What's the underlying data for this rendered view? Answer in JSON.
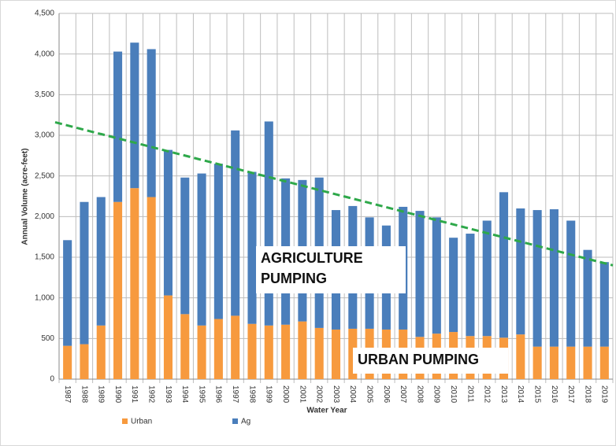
{
  "chart_data": {
    "type": "stacked_bar",
    "x_label": "Water Year",
    "y_label": "Annual Volume (acre-feet)",
    "categories": [
      "1987",
      "1988",
      "1989",
      "1990",
      "1991",
      "1992",
      "1993",
      "1994",
      "1995",
      "1996",
      "1997",
      "1998",
      "1999",
      "2000",
      "2001",
      "2002",
      "2003",
      "2004",
      "2005",
      "2006",
      "2007",
      "2008",
      "2009",
      "2010",
      "2011",
      "2012",
      "2013",
      "2014",
      "2015",
      "2016",
      "2017",
      "2018",
      "2019"
    ],
    "series": [
      {
        "name": "Urban",
        "color": "#f79a3e",
        "values": [
          410,
          430,
          660,
          2180,
          2350,
          2240,
          1030,
          800,
          660,
          740,
          780,
          680,
          660,
          670,
          710,
          630,
          610,
          620,
          620,
          610,
          610,
          520,
          560,
          580,
          530,
          530,
          510,
          550,
          400,
          400,
          400,
          400,
          400
        ]
      },
      {
        "name": "Ag",
        "color": "#4a7ebb",
        "values": [
          1300,
          1750,
          1580,
          1850,
          1790,
          1820,
          1790,
          1680,
          1870,
          1910,
          2280,
          1870,
          2510,
          1800,
          1740,
          1850,
          1470,
          1510,
          1370,
          1280,
          1510,
          1550,
          1430,
          1160,
          1260,
          1420,
          1790,
          1550,
          1680,
          1690,
          1550,
          1190,
          1040
        ]
      }
    ],
    "trend_line": {
      "color": "#2ea84a",
      "values": [
        3160,
        1400
      ]
    },
    "annotations": [
      [
        "AGRICULTURE",
        "PUMPING"
      ],
      [
        "URBAN PUMPING"
      ]
    ],
    "ylim": [
      0,
      4500
    ],
    "yticks": [
      0,
      500,
      {
        "value": 1000,
        "label": "1,000"
      },
      {
        "value": 1500,
        "label": "1,500"
      },
      {
        "value": 2000,
        "label": "2,000"
      },
      {
        "value": 2500,
        "label": "2,500"
      },
      {
        "value": 3000,
        "label": "3,000"
      },
      {
        "value": 3500,
        "label": "3,500"
      },
      {
        "value": 4000,
        "label": "4,000"
      },
      {
        "value": 4500,
        "label": "4,500"
      }
    ],
    "grid": true
  }
}
